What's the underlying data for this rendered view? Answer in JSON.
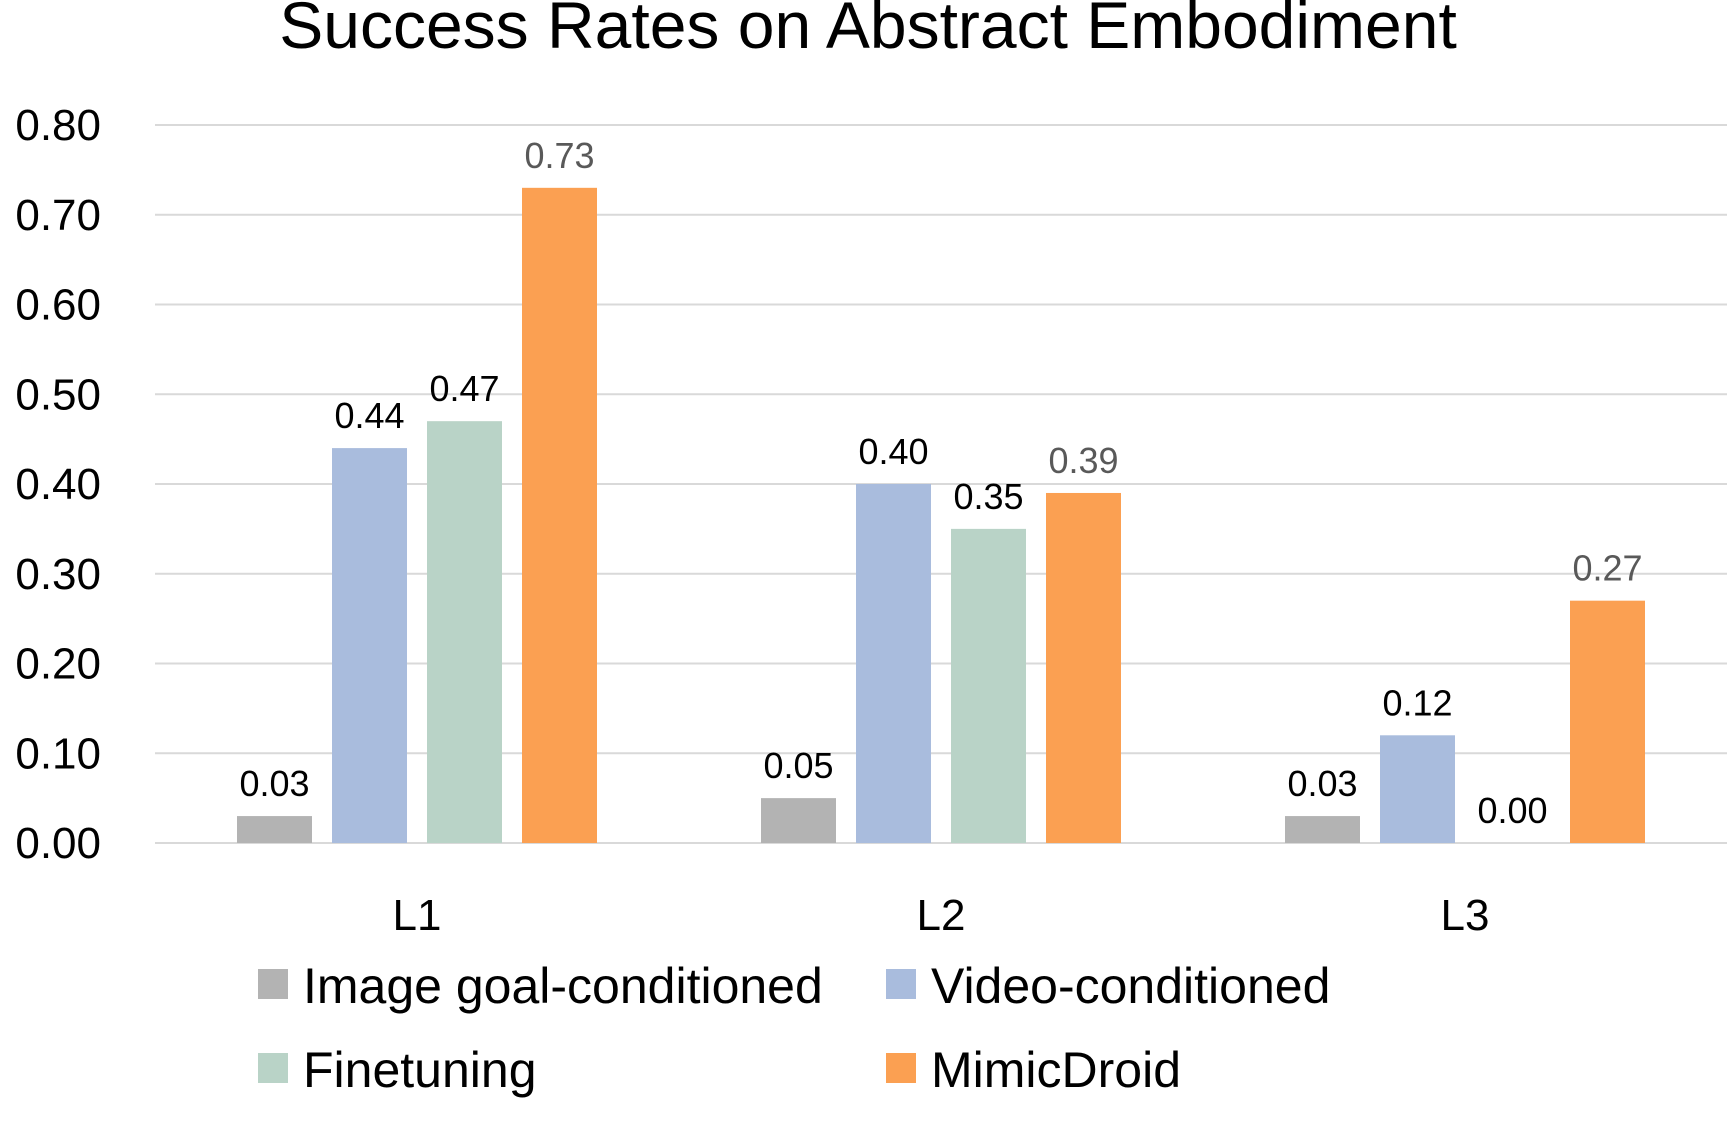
{
  "chart_data": {
    "type": "bar",
    "title": "Success Rates on Abstract Embodiment",
    "xlabel": "",
    "ylabel": "",
    "categories": [
      "L1",
      "L2",
      "L3"
    ],
    "ylim": [
      0,
      0.8
    ],
    "y_ticks": [
      "0.00",
      "0.10",
      "0.20",
      "0.30",
      "0.40",
      "0.50",
      "0.60",
      "0.70",
      "0.80"
    ],
    "grid": true,
    "legend_position": "bottom",
    "series": [
      {
        "name": "Image goal-conditioned",
        "color": "#b3b3b3",
        "label_color": "#000000",
        "values": [
          0.03,
          0.05,
          0.03
        ],
        "labels": [
          "0.03",
          "0.05",
          "0.03"
        ]
      },
      {
        "name": "Video-conditioned",
        "color": "#a9bcdd",
        "label_color": "#000000",
        "values": [
          0.44,
          0.4,
          0.12
        ],
        "labels": [
          "0.44",
          "0.40",
          "0.12"
        ]
      },
      {
        "name": "Finetuning",
        "color": "#b9d3c7",
        "label_color": "#000000",
        "values": [
          0.47,
          0.35,
          0.0
        ],
        "labels": [
          "0.47",
          "0.35",
          "0.00"
        ]
      },
      {
        "name": "MimicDroid",
        "color": "#fba052",
        "label_color": "#595959",
        "values": [
          0.73,
          0.39,
          0.27
        ],
        "labels": [
          "0.73",
          "0.39",
          "0.27"
        ]
      }
    ]
  }
}
